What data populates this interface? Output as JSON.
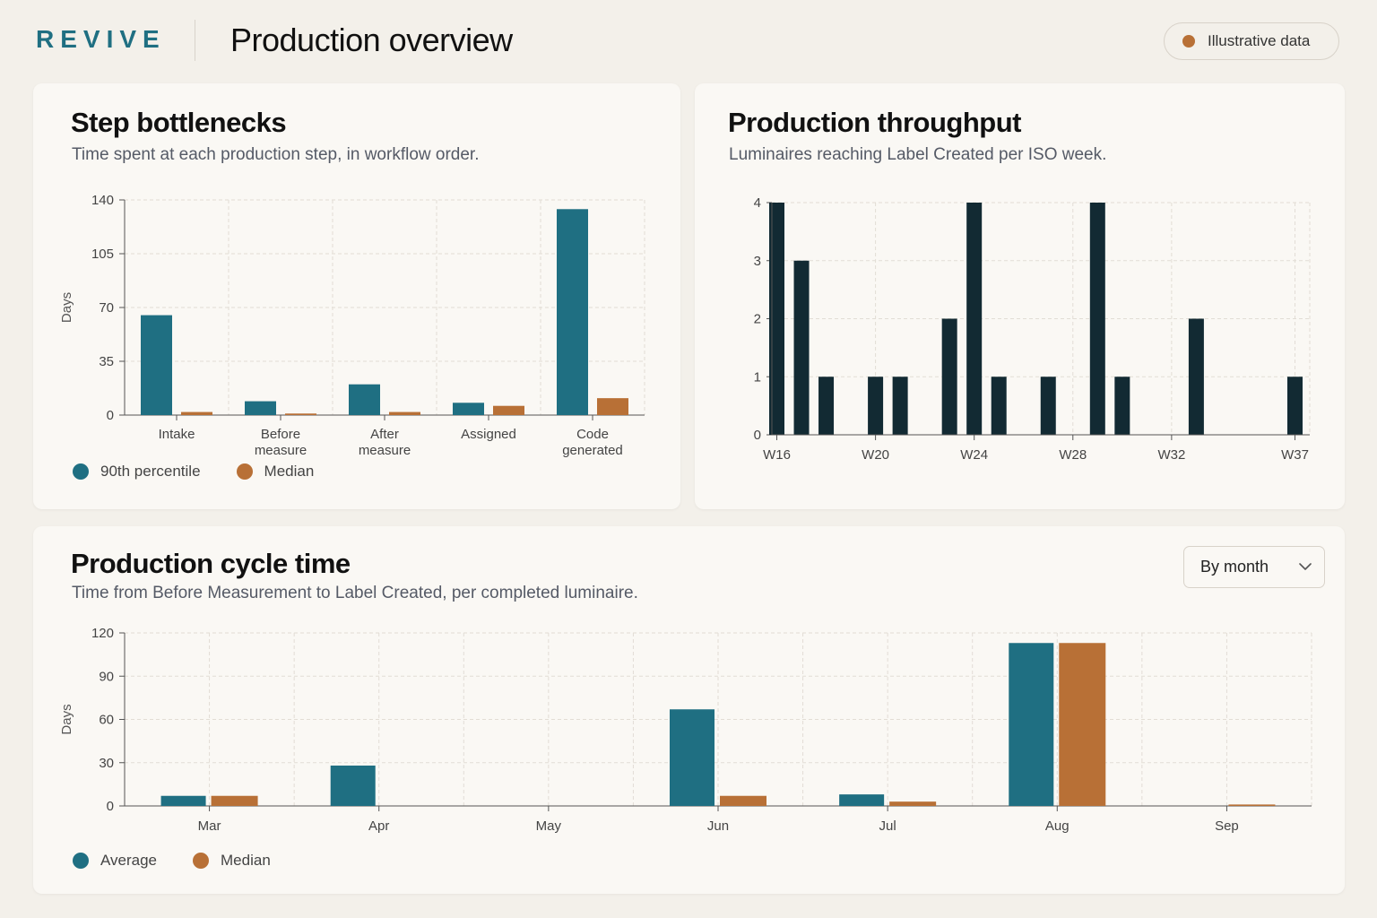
{
  "header": {
    "logo": "REVIVE",
    "title": "Production overview",
    "badge_label": "Illustrative data"
  },
  "colors": {
    "teal": "#1f6f82",
    "copper": "#b87036",
    "navy": "#122a33"
  },
  "bottlenecks": {
    "title": "Step bottlenecks",
    "subtitle": "Time spent at each production step, in workflow order.",
    "legend": [
      "90th percentile",
      "Median"
    ],
    "chart_data": {
      "type": "bar",
      "ylabel": "Days",
      "xlabel": "",
      "ylim": [
        0,
        140
      ],
      "yticks": [
        0,
        35,
        70,
        105,
        140
      ],
      "categories": [
        [
          "Intake"
        ],
        [
          "Before",
          "measure"
        ],
        [
          "After",
          "measure"
        ],
        [
          "Assigned"
        ],
        [
          "Code",
          "generated"
        ]
      ],
      "series": [
        {
          "name": "90th percentile",
          "values": [
            65,
            9,
            20,
            8,
            134
          ]
        },
        {
          "name": "Median",
          "values": [
            2,
            1,
            2,
            6,
            11
          ]
        }
      ],
      "grid": true
    }
  },
  "throughput": {
    "title": "Production throughput",
    "subtitle": "Luminaires reaching Label Created per ISO week.",
    "chart_data": {
      "type": "bar",
      "ylim": [
        0,
        4
      ],
      "yticks": [
        0,
        1,
        2,
        3,
        4
      ],
      "x_tick_labels": [
        {
          "label": "W16",
          "week": 16
        },
        {
          "label": "W20",
          "week": 20
        },
        {
          "label": "W24",
          "week": 24
        },
        {
          "label": "W28",
          "week": 28
        },
        {
          "label": "W32",
          "week": 32
        },
        {
          "label": "W37",
          "week": 37
        }
      ],
      "x_range": [
        15.8,
        37.6
      ],
      "points": [
        {
          "week": 16,
          "value": 4
        },
        {
          "week": 17,
          "value": 3
        },
        {
          "week": 18,
          "value": 1
        },
        {
          "week": 20,
          "value": 1
        },
        {
          "week": 21,
          "value": 1
        },
        {
          "week": 23,
          "value": 2
        },
        {
          "week": 24,
          "value": 4
        },
        {
          "week": 25,
          "value": 1
        },
        {
          "week": 27,
          "value": 1
        },
        {
          "week": 29,
          "value": 4
        },
        {
          "week": 30,
          "value": 1
        },
        {
          "week": 33,
          "value": 2
        },
        {
          "week": 37,
          "value": 1
        }
      ],
      "grid": true
    }
  },
  "cycle": {
    "title": "Production cycle time",
    "subtitle": "Time from Before Measurement to Label Created, per completed luminaire.",
    "dropdown_label": "By month",
    "legend": [
      "Average",
      "Median"
    ],
    "chart_data": {
      "type": "bar",
      "ylabel": "Days",
      "ylim": [
        0,
        120
      ],
      "yticks": [
        0,
        30,
        60,
        90,
        120
      ],
      "categories": [
        "Mar",
        "Apr",
        "May",
        "Jun",
        "Jul",
        "Aug",
        "Sep"
      ],
      "series": [
        {
          "name": "Average",
          "values": [
            7,
            28,
            0,
            67,
            8,
            113,
            0
          ]
        },
        {
          "name": "Median",
          "values": [
            7,
            0,
            0,
            7,
            3,
            113,
            1
          ]
        }
      ],
      "grid": true
    }
  }
}
